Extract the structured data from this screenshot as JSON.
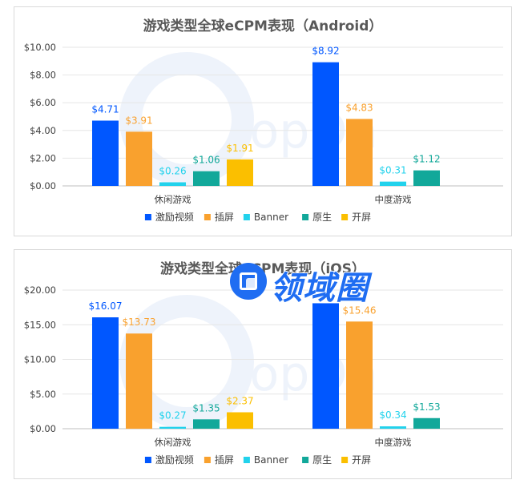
{
  "colors": {
    "激励视频": "#0057ff",
    "插屏": "#f9a12e",
    "Banner": "#22d2ec",
    "原生": "#12a89a",
    "开屏": "#fbbf00"
  },
  "watermark": {
    "text": "topOn"
  },
  "overlay_logo": {
    "text": "领域圈"
  },
  "chart_data": [
    {
      "type": "bar",
      "title": "游戏类型全球eCPM表现（Android）",
      "categories": [
        "休闲游戏",
        "中度游戏"
      ],
      "series": [
        {
          "name": "激励视频",
          "values": [
            4.71,
            8.92
          ],
          "labels": [
            "$4.71",
            "$8.92"
          ]
        },
        {
          "name": "插屏",
          "values": [
            3.91,
            4.83
          ],
          "labels": [
            "$3.91",
            "$4.83"
          ]
        },
        {
          "name": "Banner",
          "values": [
            0.26,
            0.31
          ],
          "labels": [
            "$0.26",
            "$0.31"
          ]
        },
        {
          "name": "原生",
          "values": [
            1.06,
            1.12
          ],
          "labels": [
            "$1.06",
            "$1.12"
          ]
        },
        {
          "name": "开屏",
          "values": [
            1.91,
            null
          ],
          "labels": [
            "$1.91",
            null
          ]
        }
      ],
      "ylim": [
        0,
        10
      ],
      "yticks": [
        "$0.00",
        "$2.00",
        "$4.00",
        "$6.00",
        "$8.00",
        "$10.00"
      ],
      "grid": true,
      "legend": "bottom"
    },
    {
      "type": "bar",
      "title": "游戏类型全球eCPM表现（iOS）",
      "categories": [
        "休闲游戏",
        "中度游戏"
      ],
      "series": [
        {
          "name": "激励视频",
          "values": [
            16.07,
            18.1
          ],
          "labels": [
            "$16.07",
            null
          ]
        },
        {
          "name": "插屏",
          "values": [
            13.73,
            15.46
          ],
          "labels": [
            "$13.73",
            "$15.46"
          ]
        },
        {
          "name": "Banner",
          "values": [
            0.27,
            0.34
          ],
          "labels": [
            "$0.27",
            "$0.34"
          ]
        },
        {
          "name": "原生",
          "values": [
            1.35,
            1.53
          ],
          "labels": [
            "$1.35",
            "$1.53"
          ]
        },
        {
          "name": "开屏",
          "values": [
            2.37,
            null
          ],
          "labels": [
            "$2.37",
            null
          ]
        }
      ],
      "ylim": [
        0,
        20
      ],
      "yticks": [
        "$0.00",
        "$5.00",
        "$10.00",
        "$15.00",
        "$20.00"
      ],
      "grid": true,
      "legend": "bottom"
    }
  ]
}
